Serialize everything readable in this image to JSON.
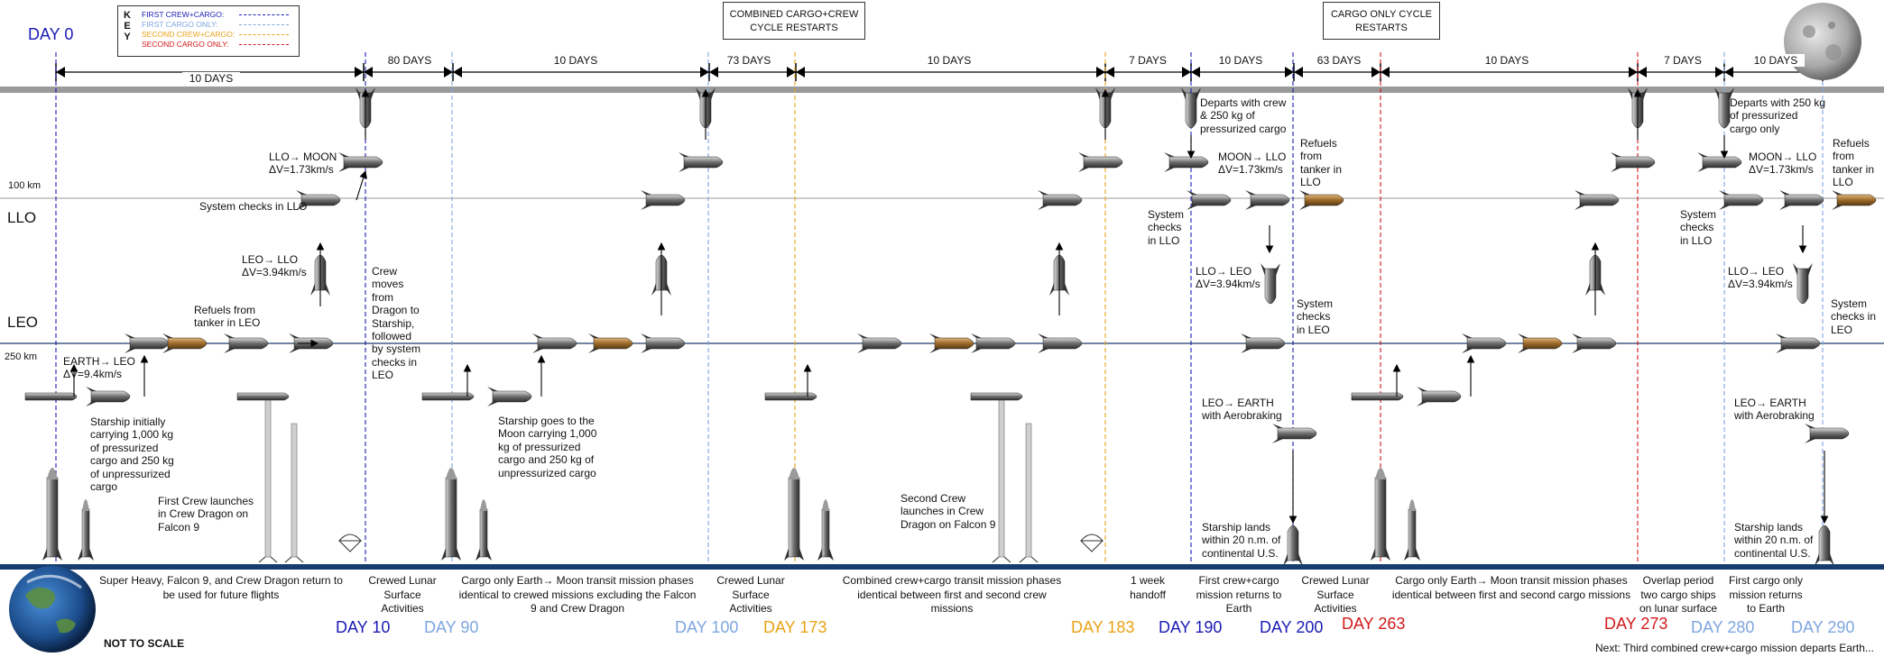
{
  "title_day0": "DAY 0",
  "key": {
    "title": "KEY",
    "items": [
      {
        "label": "FIRST CREW+CARGO:",
        "color": "#1b1bb5"
      },
      {
        "label": "FIRST CARGO ONLY:",
        "color": "#7ea6e0"
      },
      {
        "label": "SECOND CREW+CARGO:",
        "color": "#e8a317"
      },
      {
        "label": "SECOND CARGO ONLY:",
        "color": "#d11a1a"
      }
    ]
  },
  "boxes": {
    "combined": "COMBINED CARGO+CREW CYCLE RESTARTS",
    "cargo_only": "CARGO ONLY CYCLE RESTARTS"
  },
  "spans": [
    "10 DAYS",
    "80 DAYS",
    "10 DAYS",
    "73 DAYS",
    "10 DAYS",
    "7 DAYS",
    "10 DAYS",
    "63 DAYS",
    "10 DAYS",
    "7 DAYS",
    "10 DAYS"
  ],
  "altitudes": {
    "k100": "100 km",
    "llo": "LLO",
    "leo": "LEO",
    "k250": "250 km"
  },
  "annotations": {
    "llo_moon": "LLO→ MOON",
    "llo_moon_dv": "ΔV=1.73km/s",
    "sys_checks_llo_1": "System checks in LLO",
    "leo_llo": "LEO→ LLO",
    "leo_llo_dv": "ΔV=3.94km/s",
    "refuels_leo": "Refuels from tanker in LEO",
    "earth_leo": "EARTH→ LEO",
    "earth_leo_dv": "ΔV=9.4km/s",
    "starship_initially": "Starship initially carrying 1,000 kg of pressurized cargo and 250 kg of unpressurized cargo",
    "first_crew_launch": "First Crew launches in Crew Dragon on Falcon 9",
    "crew_moves": "Crew moves from Dragon to Starship, followed by system checks in LEO",
    "starship_goes": "Starship goes to the Moon carrying 1,000 kg of pressurized cargo and 250 kg of unpressurized cargo",
    "second_crew_launch": "Second Crew launches in Crew Dragon on Falcon 9",
    "departs_crew": "Departs with crew & 250 kg of pressurized cargo",
    "moon_llo_1": "MOON→ LLO",
    "moon_llo_dv_1": "ΔV=1.73km/s",
    "refuels_llo_1": "Refuels from tanker in LLO",
    "sys_llo_2": "System checks in LLO",
    "llo_leo_1": "LLO→ LEO",
    "llo_leo_dv_1": "ΔV=3.94km/s",
    "sys_leo_1": "System checks in LEO",
    "leo_earth_1": "LEO→ EARTH with Aerobraking",
    "lands_1": "Starship lands within 20 n.m. of continental U.S.",
    "departs_cargo": "Departs with 250 kg of pressurized cargo only",
    "moon_llo_2": "MOON→ LLO",
    "moon_llo_dv_2": "ΔV=1.73km/s",
    "refuels_llo_2": "Refuels from tanker in LLO",
    "sys_llo_3": "System checks in LLO",
    "llo_leo_2": "LLO→ LEO",
    "llo_leo_dv_2": "ΔV=3.94km/s",
    "sys_leo_2": "System checks in LEO",
    "leo_earth_2": "LEO→ EARTH with Aerobraking",
    "lands_2": "Starship lands within 20 n.m. of continental U.S."
  },
  "phases": {
    "p1": "Super Heavy, Falcon 9, and Crew Dragon return to be used for future flights",
    "p2": "Crewed Lunar Surface Activities",
    "p3": "Cargo only Earth→ Moon transit mission phases identical to crewed missions excluding the Falcon 9 and Crew Dragon",
    "p4": "Crewed Lunar Surface Activities",
    "p5": "Combined crew+cargo transit mission phases identical between first and second crew missions",
    "p6": "1 week handoff",
    "p7": "First crew+cargo mission returns to Earth",
    "p8": "Crewed Lunar Surface Activities",
    "p9": "Cargo only Earth→ Moon transit mission phases identical between first and second cargo missions",
    "p10": "Overlap period two cargo ships on lunar surface",
    "p11": "First cargo only mission returns to Earth"
  },
  "days": [
    {
      "label": "DAY 10",
      "color": "#1b1bb5"
    },
    {
      "label": "DAY 90",
      "color": "#7ea6e0"
    },
    {
      "label": "DAY 100",
      "color": "#7ea6e0"
    },
    {
      "label": "DAY 173",
      "color": "#e8a317"
    },
    {
      "label": "DAY 183",
      "color": "#e8a317"
    },
    {
      "label": "DAY 190",
      "color": "#1b1bb5"
    },
    {
      "label": "DAY 200",
      "color": "#1b1bb5"
    },
    {
      "label": "DAY 263",
      "color": "#d11a1a"
    },
    {
      "label": "DAY 273",
      "color": "#d11a1a"
    },
    {
      "label": "DAY 280",
      "color": "#7ea6e0"
    },
    {
      "label": "DAY 290",
      "color": "#7ea6e0"
    }
  ],
  "footer": {
    "not_to_scale": "NOT TO SCALE",
    "next": "Next: Third combined crew+cargo mission departs Earth..."
  }
}
